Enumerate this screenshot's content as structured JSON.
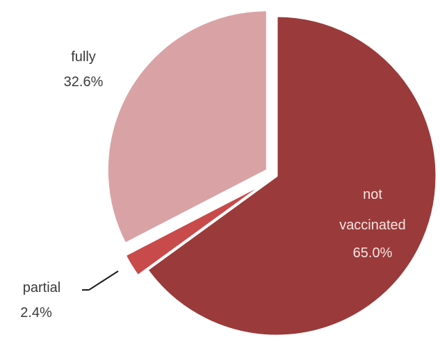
{
  "chart_data": {
    "type": "pie",
    "title": "",
    "legend": "none",
    "slices": [
      {
        "label_lines": [
          "not",
          "vaccinated"
        ],
        "value": 65.0,
        "value_label": "65.0%",
        "color": "#9b3a3a",
        "exploded": false,
        "label_color": "light"
      },
      {
        "label_lines": [
          "partial"
        ],
        "value": 2.4,
        "value_label": "2.4%",
        "color": "#c94a4a",
        "exploded": true,
        "label_color": "dark"
      },
      {
        "label_lines": [
          "fully"
        ],
        "value": 32.6,
        "value_label": "32.6%",
        "color": "#d9a3a6",
        "exploded": true,
        "label_color": "dark"
      }
    ]
  }
}
